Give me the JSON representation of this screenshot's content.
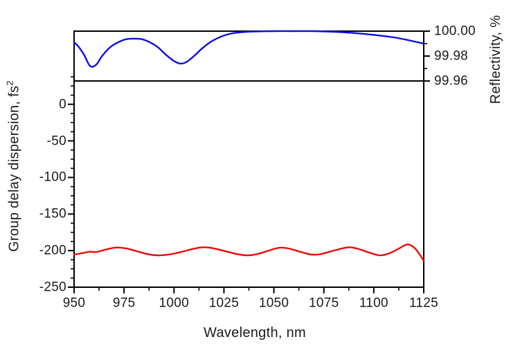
{
  "figure": {
    "xlabel": "Wavelength, nm",
    "ylabel_left_text": "Group delay dispersion, fs",
    "ylabel_left_sup": "2",
    "ylabel_right": "Reflectivity, %"
  },
  "chart_data": {
    "type": "line",
    "title": "",
    "xlabel": "Wavelength, nm",
    "ylabel_left": "Group delay dispersion, fs^2",
    "ylabel_right": "Reflectivity, %",
    "grid": false,
    "legend": "none",
    "frame_color": "#000000",
    "separator_line_right_value": 99.96,
    "x_axis": {
      "min": 950,
      "max": 1125,
      "major_ticks": [
        950,
        975,
        1000,
        1025,
        1050,
        1075,
        1100,
        1125
      ],
      "minor_ticks": [
        962.5,
        987.5,
        1012.5,
        1037.5,
        1062.5,
        1087.5,
        1112.5
      ],
      "tick_labels": [
        "950",
        "975",
        "1000",
        "1025",
        "1050",
        "1075",
        "1100",
        "1125"
      ]
    },
    "y_left_axis": {
      "min": -250,
      "max": 100,
      "major_ticks": [
        0,
        -50,
        -100,
        -150,
        -200,
        -250
      ],
      "minor_ticks": [
        37.5,
        25,
        12.5,
        -12.5,
        -25,
        -37.5,
        -62.5,
        -75,
        -87.5,
        -112.5,
        -125,
        -137.5,
        -162.5,
        -175,
        -187.5,
        -212.5,
        -225,
        -237.5
      ],
      "tick_labels": [
        "0",
        "-50",
        "-100",
        "-150",
        "-200",
        "-250"
      ]
    },
    "y_right_axis": {
      "shown_min": 99.96,
      "max": 100.0,
      "major_ticks": [
        100.0,
        99.98,
        99.96
      ],
      "minor_ticks": [
        99.99,
        99.97
      ],
      "tick_labels": [
        "100.00",
        "99.98",
        "99.96"
      ]
    },
    "series": [
      {
        "name": "Reflectivity",
        "axis": "right",
        "color": "#0d0de0",
        "x": [
          950,
          952,
          955,
          958,
          961,
          964,
          968,
          972,
          976,
          980,
          984,
          988,
          992,
          996,
          1000,
          1003,
          1006,
          1010,
          1014,
          1018,
          1022,
          1026,
          1030,
          1035,
          1040,
          1050,
          1060,
          1070,
          1080,
          1090,
          1100,
          1110,
          1118,
          1125
        ],
        "y": [
          99.991,
          99.988,
          99.981,
          99.972,
          99.973,
          99.98,
          99.987,
          99.991,
          99.9935,
          99.994,
          99.9935,
          99.991,
          99.987,
          99.981,
          99.976,
          99.974,
          99.975,
          99.98,
          99.986,
          99.991,
          99.9945,
          99.997,
          99.9985,
          99.9993,
          99.9997,
          100.0,
          100.0,
          100.0,
          99.9995,
          99.9985,
          99.997,
          99.995,
          99.9925,
          99.99
        ]
      },
      {
        "name": "Group delay dispersion",
        "axis": "left",
        "color": "#f00606",
        "x": [
          950,
          954,
          958,
          961,
          966,
          971,
          976,
          981,
          987,
          992,
          997,
          1003,
          1009,
          1014,
          1019,
          1026,
          1032,
          1037,
          1042,
          1048,
          1053,
          1058,
          1063,
          1069,
          1074,
          1080,
          1087,
          1092,
          1098,
          1103,
          1108,
          1113,
          1117,
          1121,
          1125
        ],
        "y": [
          -205.5,
          -203.5,
          -201.5,
          -202,
          -198.5,
          -195.8,
          -197,
          -200.5,
          -205,
          -206.5,
          -205.5,
          -202.3,
          -198,
          -195.5,
          -196.5,
          -201,
          -205,
          -206.5,
          -204.5,
          -199.5,
          -196,
          -197.5,
          -201.5,
          -205.5,
          -204.5,
          -200,
          -195.5,
          -197.5,
          -203,
          -206.5,
          -203.5,
          -196.5,
          -191.5,
          -198,
          -214
        ]
      }
    ]
  }
}
